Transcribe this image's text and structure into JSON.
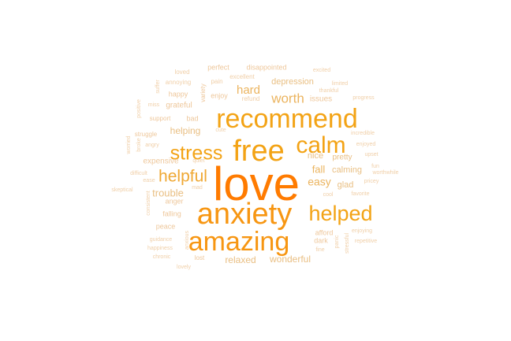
{
  "wordcloud": {
    "colors": {
      "weight_10": "#ff7b00",
      "weight_9": "#f79612",
      "weight_8": "#f3a315",
      "weight_7": "#efa833",
      "weight_6": "#ebb45f",
      "weight_5": "#e9bf83",
      "weight_4": "#eec79b",
      "weight_3": "#f0cfa8",
      "weight_2": "#f2d7b5",
      "weight_1": "#f3dbc0"
    },
    "words": [
      {
        "text": "love",
        "weight": 10
      },
      {
        "text": "anxiety",
        "weight": 9
      },
      {
        "text": "amazing",
        "weight": 9
      },
      {
        "text": "recommend",
        "weight": 8
      },
      {
        "text": "free",
        "weight": 8
      },
      {
        "text": "calm",
        "weight": 8
      },
      {
        "text": "helped",
        "weight": 8
      },
      {
        "text": "stress",
        "weight": 8
      },
      {
        "text": "helpful",
        "weight": 7
      },
      {
        "text": "worth",
        "weight": 6
      },
      {
        "text": "hard",
        "weight": 6
      },
      {
        "text": "easy",
        "weight": 6
      },
      {
        "text": "fall",
        "weight": 6
      },
      {
        "text": "relaxed",
        "weight": 5
      },
      {
        "text": "wonderful",
        "weight": 5
      },
      {
        "text": "depression",
        "weight": 5
      },
      {
        "text": "trouble",
        "weight": 5
      },
      {
        "text": "helping",
        "weight": 5
      },
      {
        "text": "calming",
        "weight": 5
      },
      {
        "text": "nice",
        "weight": 5
      },
      {
        "text": "glad",
        "weight": 5
      },
      {
        "text": "pretty",
        "weight": 5
      },
      {
        "text": "expensive",
        "weight": 4
      },
      {
        "text": "issues",
        "weight": 4
      },
      {
        "text": "grateful",
        "weight": 4
      },
      {
        "text": "enjoy",
        "weight": 4
      },
      {
        "text": "disappointed",
        "weight": 4
      },
      {
        "text": "perfect",
        "weight": 4
      },
      {
        "text": "happy",
        "weight": 4
      },
      {
        "text": "falling",
        "weight": 4
      },
      {
        "text": "anger",
        "weight": 4
      },
      {
        "text": "peace",
        "weight": 4
      },
      {
        "text": "dark",
        "weight": 4
      },
      {
        "text": "afford",
        "weight": 4
      },
      {
        "text": "variety",
        "weight": 4
      },
      {
        "text": "bad",
        "weight": 4
      },
      {
        "text": "support",
        "weight": 4
      },
      {
        "text": "struggle",
        "weight": 4
      },
      {
        "text": "lost",
        "weight": 4
      },
      {
        "text": "excellent",
        "weight": 3
      },
      {
        "text": "refund",
        "weight": 3
      },
      {
        "text": "pain",
        "weight": 3
      },
      {
        "text": "annoying",
        "weight": 3
      },
      {
        "text": "loved",
        "weight": 3
      },
      {
        "text": "excited",
        "weight": 3
      },
      {
        "text": "thankful",
        "weight": 3
      },
      {
        "text": "limited",
        "weight": 3
      },
      {
        "text": "progress",
        "weight": 3
      },
      {
        "text": "incredible",
        "weight": 3
      },
      {
        "text": "enjoyed",
        "weight": 3
      },
      {
        "text": "upset",
        "weight": 3
      },
      {
        "text": "fun",
        "weight": 3
      },
      {
        "text": "worthwhile",
        "weight": 3
      },
      {
        "text": "pricey",
        "weight": 3
      },
      {
        "text": "favorite",
        "weight": 3
      },
      {
        "text": "cool",
        "weight": 3
      },
      {
        "text": "enjoying",
        "weight": 3
      },
      {
        "text": "repetitive",
        "weight": 3
      },
      {
        "text": "fine",
        "weight": 3
      },
      {
        "text": "panic",
        "weight": 3
      },
      {
        "text": "stressful",
        "weight": 3
      },
      {
        "text": "guidance",
        "weight": 3
      },
      {
        "text": "happiness",
        "weight": 3
      },
      {
        "text": "chronic",
        "weight": 3
      },
      {
        "text": "lovely",
        "weight": 3
      },
      {
        "text": "anxious",
        "weight": 3
      },
      {
        "text": "angry",
        "weight": 3
      },
      {
        "text": "worried",
        "weight": 3
      },
      {
        "text": "broke",
        "weight": 3
      },
      {
        "text": "difficult",
        "weight": 3
      },
      {
        "text": "ease",
        "weight": 3
      },
      {
        "text": "skeptical",
        "weight": 3
      },
      {
        "text": "consistent",
        "weight": 3
      },
      {
        "text": "mad",
        "weight": 3
      },
      {
        "text": "quiet",
        "weight": 3
      },
      {
        "text": "cute",
        "weight": 3
      },
      {
        "text": "miss",
        "weight": 3
      },
      {
        "text": "positive",
        "weight": 3
      },
      {
        "text": "suffer",
        "weight": 3
      }
    ]
  }
}
